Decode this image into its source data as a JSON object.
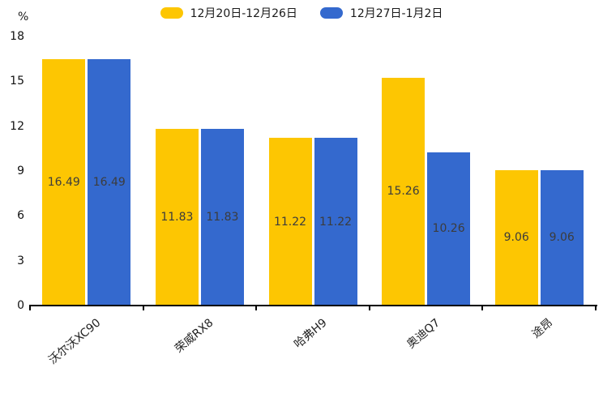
{
  "chart_data": {
    "type": "bar",
    "title": "",
    "xlabel": "",
    "ylabel": "%",
    "ylim": [
      0,
      18
    ],
    "yticks": [
      0,
      3,
      6,
      9,
      12,
      15,
      18
    ],
    "grid": false,
    "legend_position": "top-center",
    "value_labels": "inside-center",
    "axis_color": "#000000",
    "text_color": "#3c3c3c",
    "categories": [
      "沃尔沃XC90",
      "荣威RX8",
      "哈弗H9",
      "奥迪Q7",
      "途昂"
    ],
    "series": [
      {
        "name": "12月20日-12月26日",
        "color": "#FDC602",
        "values": [
          16.49,
          11.83,
          11.22,
          15.26,
          9.06
        ]
      },
      {
        "name": "12月27日-1月2日",
        "color": "#3469CE",
        "values": [
          16.49,
          11.83,
          11.22,
          10.26,
          9.06
        ]
      }
    ]
  }
}
